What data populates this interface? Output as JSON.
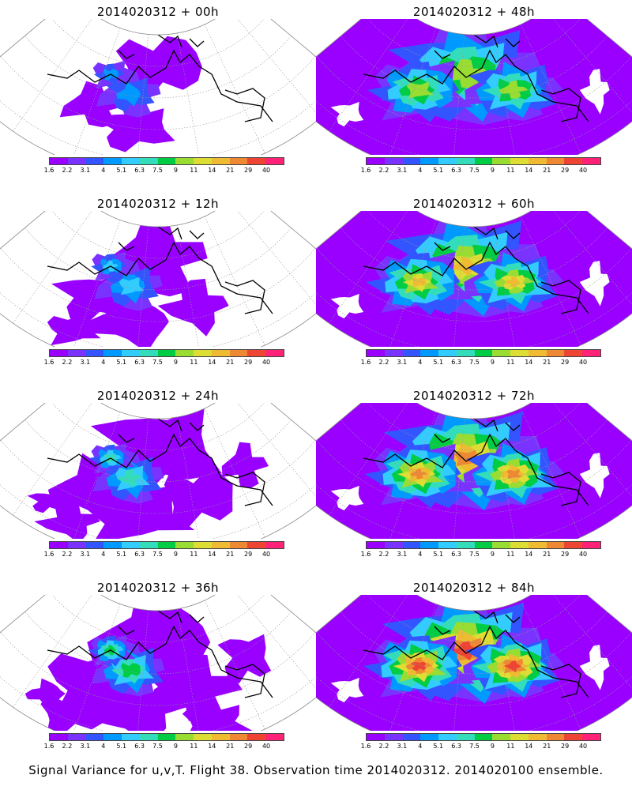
{
  "panels": [
    {
      "title": "2014020312 + 00h",
      "stage": 0
    },
    {
      "title": "2014020312 + 48h",
      "stage": 4
    },
    {
      "title": "2014020312 + 12h",
      "stage": 1
    },
    {
      "title": "2014020312 + 60h",
      "stage": 5
    },
    {
      "title": "2014020312 + 24h",
      "stage": 2
    },
    {
      "title": "2014020312 + 72h",
      "stage": 6
    },
    {
      "title": "2014020312 + 36h",
      "stage": 3
    },
    {
      "title": "2014020312 + 84h",
      "stage": 7
    }
  ],
  "colorbar": {
    "labels": [
      "1.6",
      "2.2",
      "3.1",
      "4",
      "5.1",
      "6.3",
      "7.5",
      "9",
      "11",
      "14",
      "21",
      "29",
      "40"
    ],
    "colors": [
      "#9900ff",
      "#7a33ff",
      "#3355ff",
      "#0099ff",
      "#33ccff",
      "#33ddbb",
      "#00cc44",
      "#99dd33",
      "#dddd33",
      "#eebb33",
      "#ee8833",
      "#ee4433",
      "#ff2277"
    ]
  },
  "footer": "Signal Variance for u,v,T. Flight 38. Observation time 2014020312. 2014020100 ensemble."
}
